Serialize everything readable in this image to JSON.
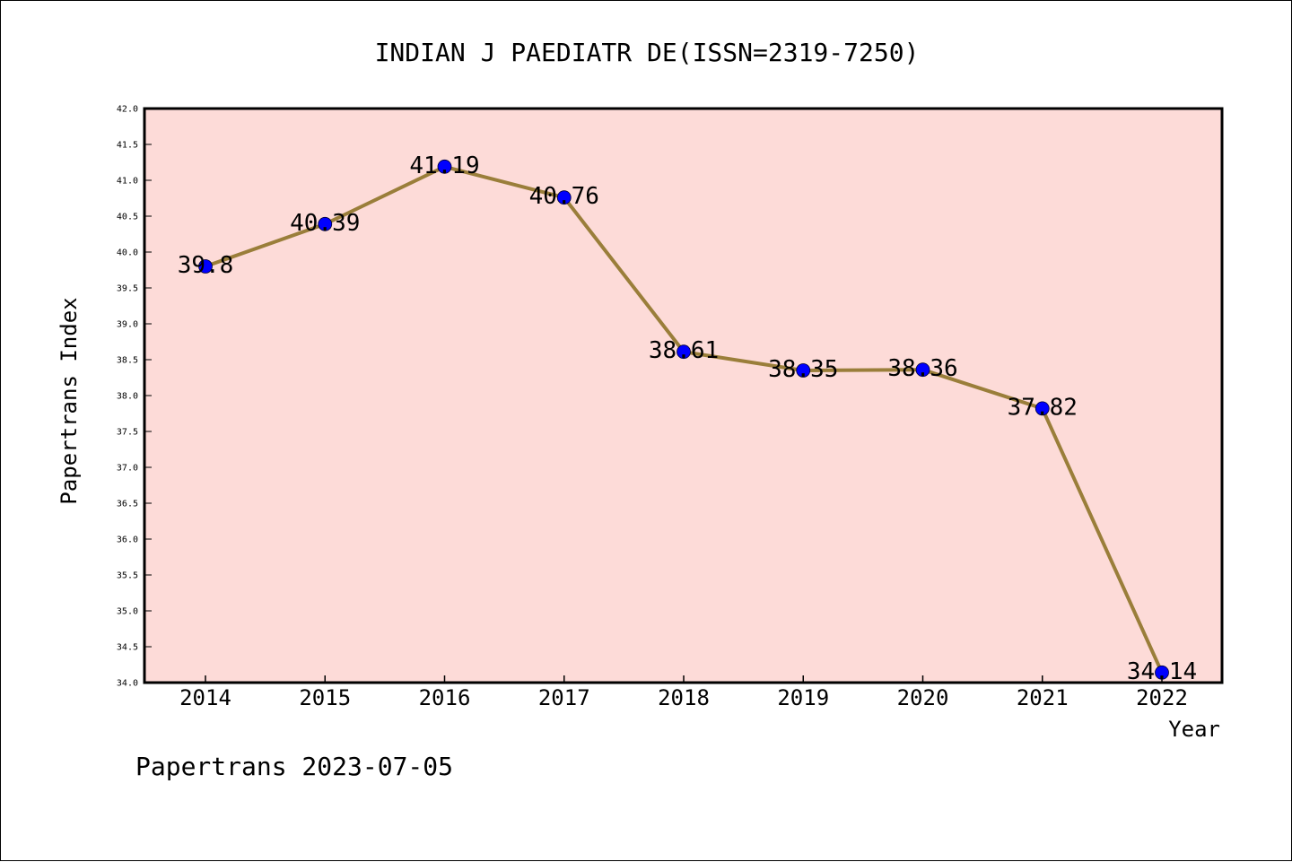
{
  "chart_data": {
    "type": "line",
    "title": "INDIAN J PAEDIATR DE(ISSN=2319-7250)",
    "xlabel": "Year",
    "ylabel": "Papertrans Index",
    "x": [
      "2014",
      "2015",
      "2016",
      "2017",
      "2018",
      "2019",
      "2020",
      "2021",
      "2022"
    ],
    "series": [
      {
        "values": [
          39.8,
          40.39,
          41.19,
          40.76,
          38.61,
          38.35,
          38.36,
          37.82,
          34.14
        ],
        "labels": [
          "39.8",
          "40.39",
          "41.19",
          "40.76",
          "38.61",
          "38.35",
          "38.36",
          "37.82",
          "34.14"
        ]
      }
    ],
    "ylim": [
      34.0,
      42.0
    ],
    "yticks": [
      "34.0",
      "34.5",
      "35.0",
      "35.5",
      "36.0",
      "36.5",
      "37.0",
      "37.5",
      "38.0",
      "38.5",
      "39.0",
      "39.5",
      "40.0",
      "40.5",
      "41.0",
      "41.5",
      "42.0"
    ],
    "grid": false,
    "colors": {
      "plot_background": "#fddbd8",
      "line": "#9a7e3a",
      "marker": "#0000ff"
    }
  },
  "footer": "Papertrans 2023-07-05"
}
